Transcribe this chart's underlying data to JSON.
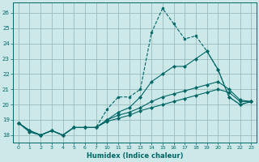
{
  "xlabel": "Humidex (Indice chaleur)",
  "background_color": "#cce8e8",
  "grid_color": "#99bbbb",
  "line_color": "#006666",
  "ylim": [
    17.5,
    26.7
  ],
  "yticks": [
    18,
    19,
    20,
    21,
    22,
    23,
    24,
    25,
    26
  ],
  "xlabels": [
    "0",
    "1",
    "2",
    "3",
    "4",
    "5",
    "6",
    "7",
    "10",
    "11",
    "12",
    "13",
    "14",
    "15",
    "16",
    "17",
    "18",
    "19",
    "20",
    "21",
    "22",
    "23"
  ],
  "series": [
    {
      "y": [
        18.8,
        18.3,
        18.0,
        18.3,
        18.0,
        18.5,
        18.5,
        18.5,
        19.7,
        20.5,
        20.5,
        21.0,
        24.7,
        26.3,
        25.3,
        24.3,
        24.5,
        23.5,
        22.3,
        20.5,
        20.0,
        20.2
      ],
      "linestyle": "--"
    },
    {
      "y": [
        18.8,
        18.3,
        18.0,
        18.3,
        18.0,
        18.5,
        18.5,
        18.5,
        19.0,
        19.5,
        19.8,
        20.5,
        21.5,
        22.0,
        22.5,
        22.5,
        23.0,
        23.5,
        22.3,
        20.5,
        20.0,
        20.2
      ],
      "linestyle": "-"
    },
    {
      "y": [
        18.8,
        18.3,
        18.0,
        18.3,
        18.0,
        18.5,
        18.5,
        18.5,
        19.0,
        19.3,
        19.5,
        19.8,
        20.2,
        20.5,
        20.7,
        20.9,
        21.1,
        21.3,
        21.5,
        21.0,
        20.3,
        20.2
      ],
      "linestyle": "-"
    },
    {
      "y": [
        18.8,
        18.2,
        18.0,
        18.3,
        18.0,
        18.5,
        18.5,
        18.5,
        18.9,
        19.1,
        19.3,
        19.6,
        19.8,
        20.0,
        20.2,
        20.4,
        20.6,
        20.8,
        21.0,
        20.8,
        20.2,
        20.2
      ],
      "linestyle": "-"
    }
  ]
}
